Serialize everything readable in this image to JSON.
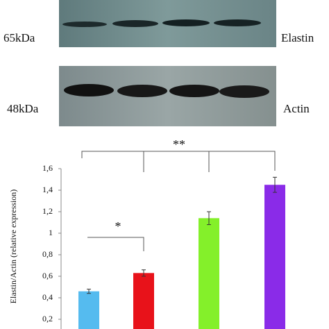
{
  "blots": [
    {
      "size": "65kDa",
      "label": "Elastin"
    },
    {
      "size": "48kDa",
      "label": "Actin"
    }
  ],
  "chart_data": {
    "type": "bar",
    "y_label": "Elastin/Actin (relative expression)",
    "values": [
      0.46,
      0.63,
      1.14,
      1.45
    ],
    "errors": [
      0.02,
      0.03,
      0.06,
      0.07
    ],
    "colors": [
      "#55bbef",
      "#e8121a",
      "#84f02a",
      "#8a2be8"
    ],
    "ylim": [
      0,
      1.6
    ],
    "yticks": [
      {
        "value": 0.2,
        "label": "0,2"
      },
      {
        "value": 0.4,
        "label": "0,4"
      },
      {
        "value": 0.6,
        "label": "0,6"
      },
      {
        "value": 0.8,
        "label": "0,8"
      },
      1,
      {
        "value": 1.2,
        "label": "1,2"
      },
      {
        "value": 1.4,
        "label": "1,4"
      },
      {
        "value": 1.6,
        "label": "1,6"
      }
    ],
    "annotations": [
      "*",
      "**"
    ]
  }
}
